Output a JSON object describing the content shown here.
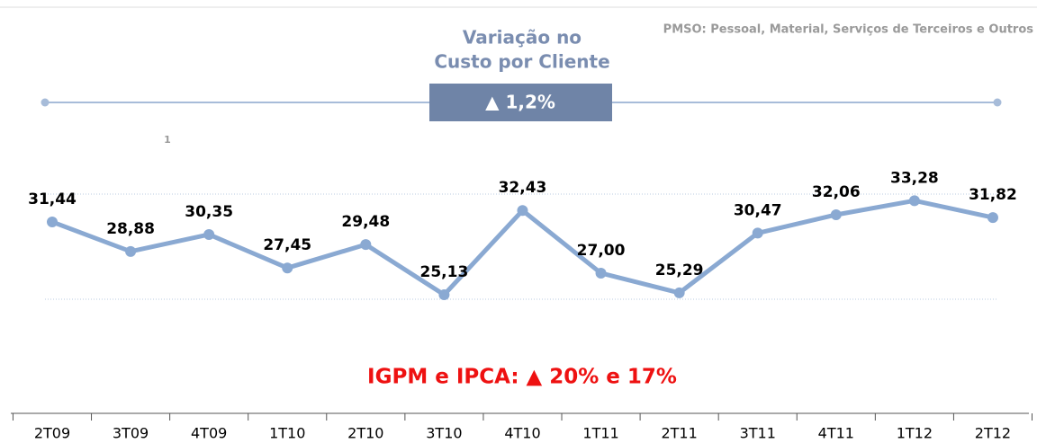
{
  "chart_data": {
    "type": "line",
    "title": [
      "Variação no",
      "Custo por Cliente"
    ],
    "note": "PMSO: Pessoal, Material, Serviços de Terceiros e Outros",
    "change_label": "▲ 1,2%",
    "footnote_marker": "1",
    "annotation": "IGPM e IPCA:  ▲ 20% e 17%",
    "categories": [
      "2T09",
      "3T09",
      "4T09",
      "1T10",
      "2T10",
      "3T10",
      "4T10",
      "1T11",
      "2T11",
      "3T11",
      "4T11",
      "1T12",
      "2T12"
    ],
    "values": [
      31.44,
      28.88,
      30.35,
      27.45,
      29.48,
      25.13,
      32.43,
      27.0,
      25.29,
      30.47,
      32.06,
      33.28,
      31.82
    ],
    "value_labels": [
      "31,44",
      "28,88",
      "30,35",
      "27,45",
      "29,48",
      "25,13",
      "32,43",
      "27,00",
      "25,29",
      "30,47",
      "32,06",
      "33,28",
      "31,82"
    ],
    "color": "#8aa9d2",
    "ylim": [
      24.74,
      33.85
    ]
  }
}
